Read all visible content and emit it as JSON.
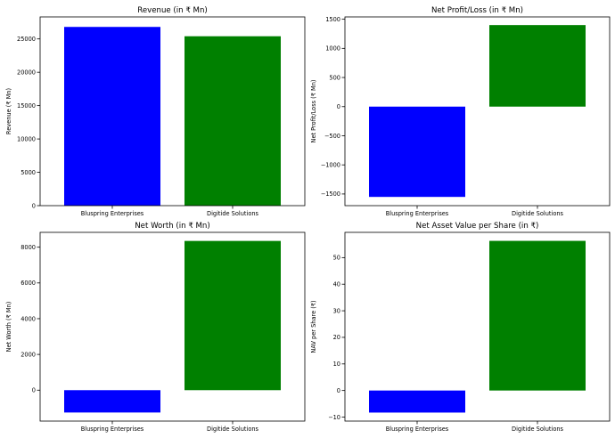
{
  "chart_data": [
    {
      "type": "bar",
      "title": "Revenue (in ₹ Mn)",
      "xlabel": "",
      "ylabel": "Revenue (₹ Mn)",
      "categories": [
        "Bluspring Enterprises",
        "Digitide Solutions"
      ],
      "values": [
        26800,
        25400
      ],
      "colors": [
        "#0000ff",
        "#008000"
      ],
      "ylim": [
        0,
        28300
      ],
      "yticks": [
        0,
        5000,
        10000,
        15000,
        20000,
        25000
      ],
      "ytick_labels": [
        "0",
        "5000",
        "10000",
        "15000",
        "20000",
        "25000"
      ],
      "grid": false
    },
    {
      "type": "bar",
      "title": "Net Profit/Loss (in ₹ Mn)",
      "xlabel": "",
      "ylabel": "Net Profit/Loss (₹ Mn)",
      "categories": [
        "Bluspring Enterprises",
        "Digitide Solutions"
      ],
      "values": [
        -1550,
        1400
      ],
      "colors": [
        "#0000ff",
        "#008000"
      ],
      "ylim": [
        -1700,
        1540
      ],
      "yticks": [
        -1500,
        -1000,
        -500,
        0,
        500,
        1000,
        1500
      ],
      "ytick_labels": [
        "−1500",
        "−1000",
        "−500",
        "0",
        "500",
        "1000",
        "1500"
      ],
      "grid": false
    },
    {
      "type": "bar",
      "title": "Net Worth (in ₹ Mn)",
      "xlabel": "",
      "ylabel": "Net Worth (₹ Mn)",
      "categories": [
        "Bluspring Enterprises",
        "Digitide Solutions"
      ],
      "values": [
        -1250,
        8350
      ],
      "colors": [
        "#0000ff",
        "#008000"
      ],
      "ylim": [
        -1730,
        8830
      ],
      "yticks": [
        0,
        2000,
        4000,
        6000,
        8000
      ],
      "ytick_labels": [
        "0",
        "2000",
        "4000",
        "6000",
        "8000"
      ],
      "grid": false
    },
    {
      "type": "bar",
      "title": "Net Asset Value per Share (in ₹)",
      "xlabel": "",
      "ylabel": "NAV per Share (₹)",
      "categories": [
        "Bluspring Enterprises",
        "Digitide Solutions"
      ],
      "values": [
        -8.3,
        56.3
      ],
      "colors": [
        "#0000ff",
        "#008000"
      ],
      "ylim": [
        -11.5,
        59.5
      ],
      "yticks": [
        -10,
        0,
        10,
        20,
        30,
        40,
        50
      ],
      "ytick_labels": [
        "−10",
        "0",
        "10",
        "20",
        "30",
        "40",
        "50"
      ],
      "grid": false
    }
  ]
}
